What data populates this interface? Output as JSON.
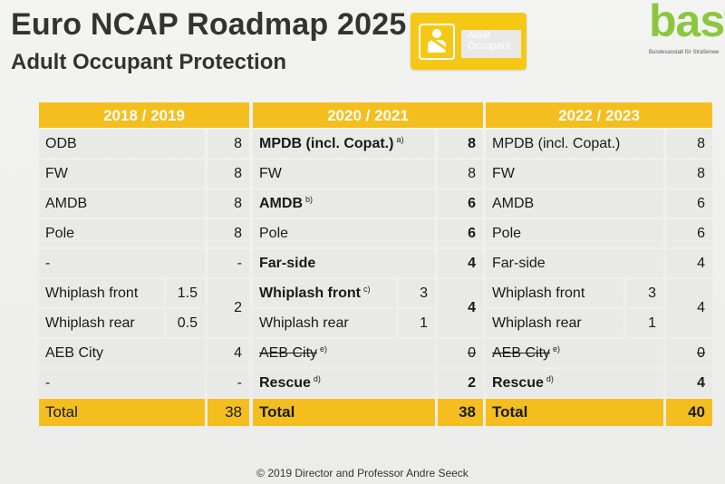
{
  "title": "Euro NCAP Roadmap 2025",
  "subtitle": "Adult Occupant Protection",
  "badge": {
    "label_line1": "Adult",
    "label_line2": "Occupant",
    "icon": "seatbelt-occupant-icon",
    "color": "#f5c816"
  },
  "logo": {
    "word": "bast",
    "tagline": "Bundesanstalt für Straßenwe",
    "color": "#8dc63f"
  },
  "colors": {
    "header": "#f4bf1e",
    "cell": "#e9e9e7"
  },
  "columns": [
    {
      "header": "2018 / 2019",
      "rows": [
        {
          "label": "ODB",
          "value": "8"
        },
        {
          "label": "FW",
          "value": "8"
        },
        {
          "label": "AMDB",
          "value": "8"
        },
        {
          "label": "Pole",
          "value": "8"
        },
        {
          "label": "-",
          "value": "-"
        },
        {
          "sub": [
            {
              "label": "Whiplash front",
              "value": "1.5"
            },
            {
              "label": "Whiplash rear",
              "value": "0.5"
            }
          ],
          "value": "2"
        },
        {
          "label": "AEB City",
          "value": "4"
        },
        {
          "label": "-",
          "value": "-"
        }
      ],
      "total_label": "Total",
      "total_value": "38"
    },
    {
      "header": "2020 / 2021",
      "rows": [
        {
          "label": "MPDB (incl. Copat.)",
          "note": "a)",
          "value": "8"
        },
        {
          "label": "FW",
          "value": "8"
        },
        {
          "label": "AMDB",
          "note": "b)",
          "value": "6"
        },
        {
          "label": "Pole",
          "value": "6"
        },
        {
          "label": "Far-side",
          "value": "4"
        },
        {
          "sub": [
            {
              "label": "Whiplash front",
              "note": "c)",
              "value": "3"
            },
            {
              "label": "Whiplash rear",
              "value": "1"
            }
          ],
          "value": "4"
        },
        {
          "label": "AEB City",
          "note": "e)",
          "value": "0"
        },
        {
          "label": "Rescue",
          "note": "d)",
          "value": "2"
        }
      ],
      "total_label": "Total",
      "total_value": "38"
    },
    {
      "header": "2022 / 2023",
      "rows": [
        {
          "label": "MPDB (incl. Copat.)",
          "value": "8"
        },
        {
          "label": "FW",
          "value": "8"
        },
        {
          "label": "AMDB",
          "value": "6"
        },
        {
          "label": "Pole",
          "value": "6"
        },
        {
          "label": "Far-side",
          "value": "4"
        },
        {
          "sub": [
            {
              "label": "Whiplash front",
              "value": "3"
            },
            {
              "label": "Whiplash rear",
              "value": "1"
            }
          ],
          "value": "4"
        },
        {
          "label": "AEB City",
          "note": "e)",
          "value": "0"
        },
        {
          "label": "Rescue",
          "note": "d)",
          "value": "4"
        }
      ],
      "total_label": "Total",
      "total_value": "40"
    }
  ],
  "footer": "© 2019 Director and Professor Andre Seeck"
}
